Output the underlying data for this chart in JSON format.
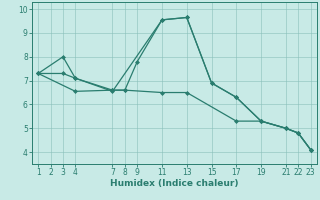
{
  "xlabel": "Humidex (Indice chaleur)",
  "bg_color": "#c8eae6",
  "line_color": "#2a7d6f",
  "grid_color": "#8abfba",
  "xlim": [
    0.5,
    23.5
  ],
  "ylim": [
    3.5,
    10.3
  ],
  "xticks": [
    1,
    2,
    3,
    4,
    7,
    8,
    9,
    11,
    13,
    15,
    17,
    19,
    21,
    22,
    23
  ],
  "yticks": [
    4,
    5,
    6,
    7,
    8,
    9,
    10
  ],
  "series": [
    {
      "x": [
        1,
        3,
        4,
        7,
        11,
        13,
        15,
        17,
        19,
        21,
        22,
        23
      ],
      "y": [
        7.3,
        7.3,
        7.1,
        6.55,
        9.55,
        9.65,
        6.9,
        6.3,
        5.3,
        5.0,
        4.8,
        4.1
      ]
    },
    {
      "x": [
        1,
        3,
        4,
        7,
        8,
        9,
        11,
        13,
        15,
        17,
        19,
        21,
        22,
        23
      ],
      "y": [
        7.3,
        8.0,
        7.1,
        6.6,
        6.6,
        7.8,
        9.55,
        9.65,
        6.9,
        6.3,
        5.3,
        5.0,
        4.8,
        4.1
      ]
    },
    {
      "x": [
        1,
        4,
        7,
        8,
        11,
        13,
        17,
        19,
        21,
        22,
        23
      ],
      "y": [
        7.3,
        6.55,
        6.6,
        6.6,
        6.5,
        6.5,
        5.3,
        5.3,
        5.0,
        4.8,
        4.1
      ]
    }
  ]
}
